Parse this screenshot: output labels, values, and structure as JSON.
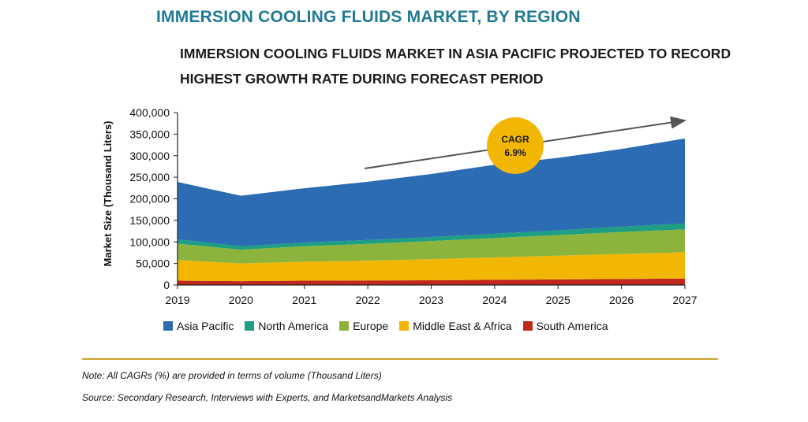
{
  "header": {
    "title": "IMMERSION COOLING FLUIDS MARKET, BY REGION",
    "subtitle_line1": "IMMERSION COOLING FLUIDS MARKET IN ASIA PACIFIC PROJECTED TO RECORD",
    "subtitle_line2": "HIGHEST GROWTH RATE DURING FORECAST PERIOD"
  },
  "chart_data": {
    "type": "area",
    "stacked": true,
    "x": [
      "2019",
      "2020",
      "2021",
      "2022",
      "2023",
      "2024",
      "2025",
      "2026",
      "2027"
    ],
    "ylabel": "Market Size (Thousand Liters)",
    "ylim": [
      0,
      400000
    ],
    "yticks": [
      0,
      50000,
      100000,
      150000,
      200000,
      250000,
      300000,
      350000,
      400000
    ],
    "ytick_labels": [
      "0",
      "50,000",
      "100,000",
      "150,000",
      "200,000",
      "250,000",
      "300,000",
      "350,000",
      "400,000"
    ],
    "grid": false,
    "legend_position": "bottom",
    "series": [
      {
        "name": "South America",
        "color": "#c0281e",
        "values": [
          10000,
          9000,
          10000,
          10500,
          11000,
          12000,
          13000,
          14000,
          15000
        ]
      },
      {
        "name": "Middle East & Africa",
        "color": "#f2b705",
        "values": [
          48000,
          41000,
          44000,
          46000,
          49000,
          52000,
          55000,
          58000,
          61000
        ]
      },
      {
        "name": "Europe",
        "color": "#8cb43c",
        "values": [
          38000,
          32000,
          36000,
          39000,
          42000,
          45000,
          48000,
          51000,
          53000
        ]
      },
      {
        "name": "North America",
        "color": "#1e9e82",
        "values": [
          10000,
          8000,
          8500,
          9000,
          9500,
          10000,
          11000,
          12500,
          14000
        ]
      },
      {
        "name": "Asia Pacific",
        "color": "#2b6cb3",
        "values": [
          133000,
          117000,
          126000,
          135000,
          146000,
          160000,
          168000,
          180000,
          197000
        ]
      }
    ],
    "annotation": {
      "text_line1": "CAGR",
      "text_line2": "6.9%",
      "color": "#f2b705"
    }
  },
  "legend": [
    {
      "label": "Asia Pacific",
      "color": "#2b6cb3"
    },
    {
      "label": "North America",
      "color": "#1e9e82"
    },
    {
      "label": "Europe",
      "color": "#8cb43c"
    },
    {
      "label": "Middle East & Africa",
      "color": "#f2b705"
    },
    {
      "label": "South America",
      "color": "#c0281e"
    }
  ],
  "footer": {
    "note": "Note: All CAGRs (%) are provided in terms of volume (Thousand Liters)",
    "source": "Source: Secondary Research, Interviews with Experts, and MarketsandMarkets Analysis"
  }
}
